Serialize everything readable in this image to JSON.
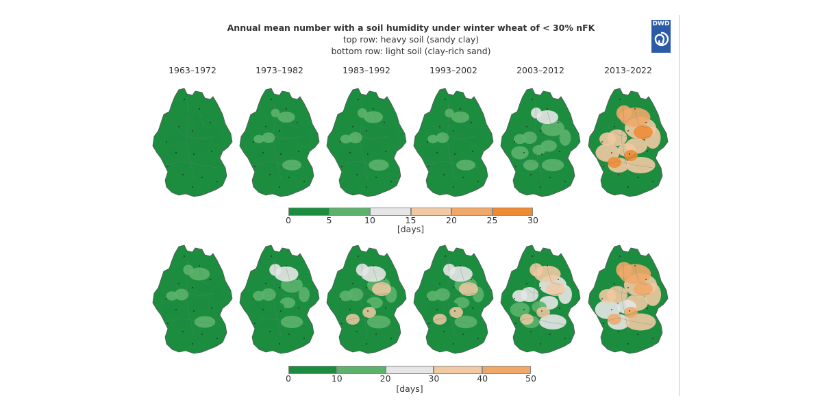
{
  "header": {
    "title": "Annual mean number with a soil humidity under winter wheat of < 30% nFK",
    "subtitle_top": "top row: heavy soil (sandy clay)",
    "subtitle_bottom": "bottom row: light soil (clay-rich sand)",
    "logo_text": "DWD"
  },
  "decades": [
    "1963–1972",
    "1973–1982",
    "1983–1992",
    "1993–2002",
    "2003–2012",
    "2013–2022"
  ],
  "top_row": {
    "legend_ticks": [
      "0",
      "5",
      "10",
      "15",
      "20",
      "25",
      "30"
    ],
    "legend_unit": "[days]",
    "legend_colors": [
      "#1c8c3f",
      "#5cb26a",
      "#e6e6e6",
      "#f1c9a3",
      "#f0a869",
      "#ee8a31"
    ],
    "maps": [
      {
        "period": "1963–1972",
        "levels": [
          0.1,
          0.12,
          0.08,
          0.14
        ]
      },
      {
        "period": "1973–1982",
        "levels": [
          0.12,
          0.2,
          0.1,
          0.18
        ]
      },
      {
        "period": "1983–1992",
        "levels": [
          0.15,
          0.28,
          0.12,
          0.22
        ]
      },
      {
        "period": "1993–2002",
        "levels": [
          0.12,
          0.22,
          0.1,
          0.18
        ]
      },
      {
        "period": "2003–2012",
        "levels": [
          0.25,
          0.4,
          0.2,
          0.3
        ]
      },
      {
        "period": "2013–2022",
        "levels": [
          0.55,
          0.8,
          0.5,
          0.6
        ]
      }
    ]
  },
  "bottom_row": {
    "legend_ticks": [
      "0",
      "10",
      "20",
      "30",
      "40",
      "50"
    ],
    "legend_unit": "[days]",
    "legend_colors": [
      "#1c8c3f",
      "#5cb26a",
      "#e6e6e6",
      "#f1c9a3",
      "#f0a869"
    ],
    "maps": [
      {
        "period": "1963–1972",
        "levels": [
          0.15,
          0.35,
          0.12,
          0.25
        ]
      },
      {
        "period": "1973–1982",
        "levels": [
          0.2,
          0.5,
          0.15,
          0.3
        ]
      },
      {
        "period": "1983–1992",
        "levels": [
          0.25,
          0.55,
          0.18,
          0.35
        ]
      },
      {
        "period": "1993–2002",
        "levels": [
          0.22,
          0.52,
          0.18,
          0.32
        ]
      },
      {
        "period": "2003–2012",
        "levels": [
          0.4,
          0.62,
          0.3,
          0.5
        ]
      },
      {
        "period": "2013–2022",
        "levels": [
          0.6,
          0.85,
          0.55,
          0.65
        ]
      }
    ]
  }
}
